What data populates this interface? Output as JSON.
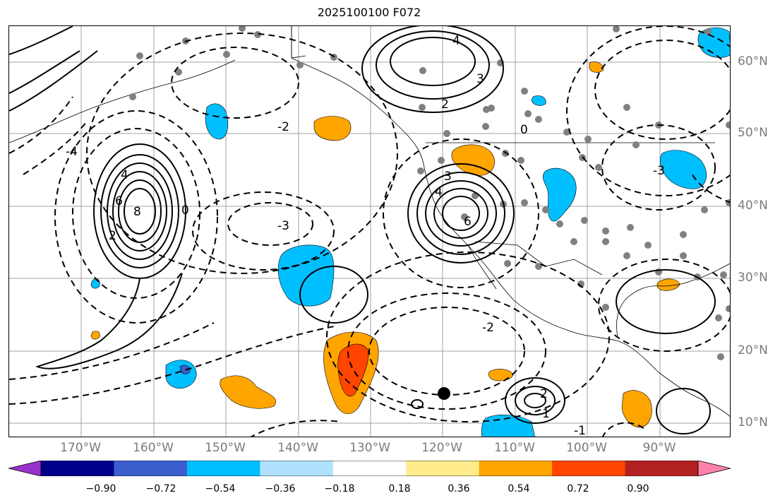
{
  "title": "2025100100 F072",
  "lon_labels": [
    "170°W",
    "160°W",
    "150°W",
    "140°W",
    "130°W",
    "120°W",
    "110°W",
    "100°W",
    "90°W"
  ],
  "lat_labels": [
    "60°N",
    "50°N",
    "40°N",
    "30°N",
    "20°N",
    "10°N"
  ],
  "colorbar": {
    "ticks": [
      "−0.90",
      "−0.72",
      "−0.54",
      "−0.36",
      "−0.18",
      "0.18",
      "0.36",
      "0.54",
      "0.72",
      "0.90"
    ],
    "colors": [
      "#9932cc",
      "#00008b",
      "#3a5fcd",
      "#00bfff",
      "#b0e2ff",
      "#ffffff",
      "#ffec8b",
      "#ffa500",
      "#ff4500",
      "#b22222",
      "#ff82ab"
    ]
  },
  "fill_colors": {
    "orange": "#ffa500",
    "red": "#ff4500",
    "blue": "#00bfff",
    "darkblue": "#3a5fcd"
  },
  "contour_labels": [
    {
      "text": "8"
    },
    {
      "text": "6"
    },
    {
      "text": "4"
    },
    {
      "text": "2"
    },
    {
      "text": "0"
    },
    {
      "text": "-2"
    },
    {
      "text": "-3"
    },
    {
      "text": "-4"
    },
    {
      "text": "6"
    },
    {
      "text": "4"
    },
    {
      "text": "3"
    },
    {
      "text": "2"
    },
    {
      "text": "0"
    },
    {
      "text": "-2"
    },
    {
      "text": "-3"
    },
    {
      "text": "-1"
    },
    {
      "text": "1"
    },
    {
      "text": "2"
    },
    {
      "text": "3"
    },
    {
      "text": "4"
    }
  ]
}
